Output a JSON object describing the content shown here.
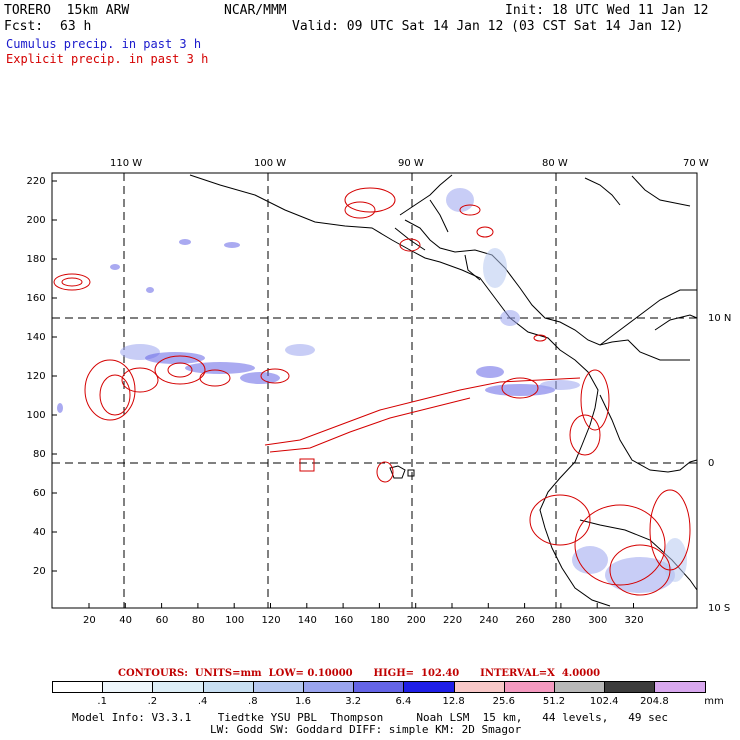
{
  "header": {
    "model": "TORERO  15km ARW",
    "org": "NCAR/MMM",
    "init": "Init: 18 UTC Wed 11 Jan 12",
    "fcst_label": "Fcst:",
    "fcst_value": "63 h",
    "valid": "Valid: 09 UTC Sat 14 Jan 12 (03 CST Sat 14 Jan 12)",
    "legend_cumulus": "Cumulus precip. in past 3 h",
    "legend_explicit": "Explicit precip. in past 3 h"
  },
  "colors": {
    "cumulus": "#1a1acc",
    "explicit": "#d40000",
    "coast": "#000000"
  },
  "map": {
    "top_lon_labels": [
      "110 W",
      "100 W",
      "90 W",
      "80 W",
      "70 W"
    ],
    "right_lat_labels": [
      "10 N",
      "0",
      "10 S"
    ],
    "x_ticks": [
      "20",
      "40",
      "60",
      "80",
      "100",
      "120",
      "140",
      "160",
      "180",
      "200",
      "220",
      "240",
      "260",
      "280",
      "300",
      "320"
    ],
    "y_ticks": [
      "20",
      "40",
      "60",
      "80",
      "100",
      "120",
      "140",
      "160",
      "180",
      "200",
      "220"
    ]
  },
  "contours_line": {
    "label": "CONTOURS:  UNITS=mm  LOW= 0.10000      HIGH=  102.40      INTERVAL=X  4.0000"
  },
  "colorbar": {
    "labels": [
      ".1",
      ".2",
      ".4",
      ".8",
      "1.6",
      "3.2",
      "6.4",
      "12.8",
      "25.6",
      "51.2",
      "102.4",
      "204.8"
    ],
    "unit": "mm",
    "fills": [
      "#ffffff",
      "#eef6fb",
      "#ddeef7",
      "#c8dff2",
      "#b6c8f0",
      "#9aa4ee",
      "#6464e6",
      "#1e1ee6",
      "#f8c8c8",
      "#f49ac0",
      "#b8b8b8",
      "#3c3c3c",
      "#d8a8ee"
    ]
  },
  "footer": {
    "line1": "Model Info: V3.3.1    Tiedtke YSU PBL  Thompson     Noah LSM  15 km,   44 levels,   49 sec",
    "line2": "LW: Godd SW: Goddard DIFF: simple KM: 2D Smagor"
  }
}
